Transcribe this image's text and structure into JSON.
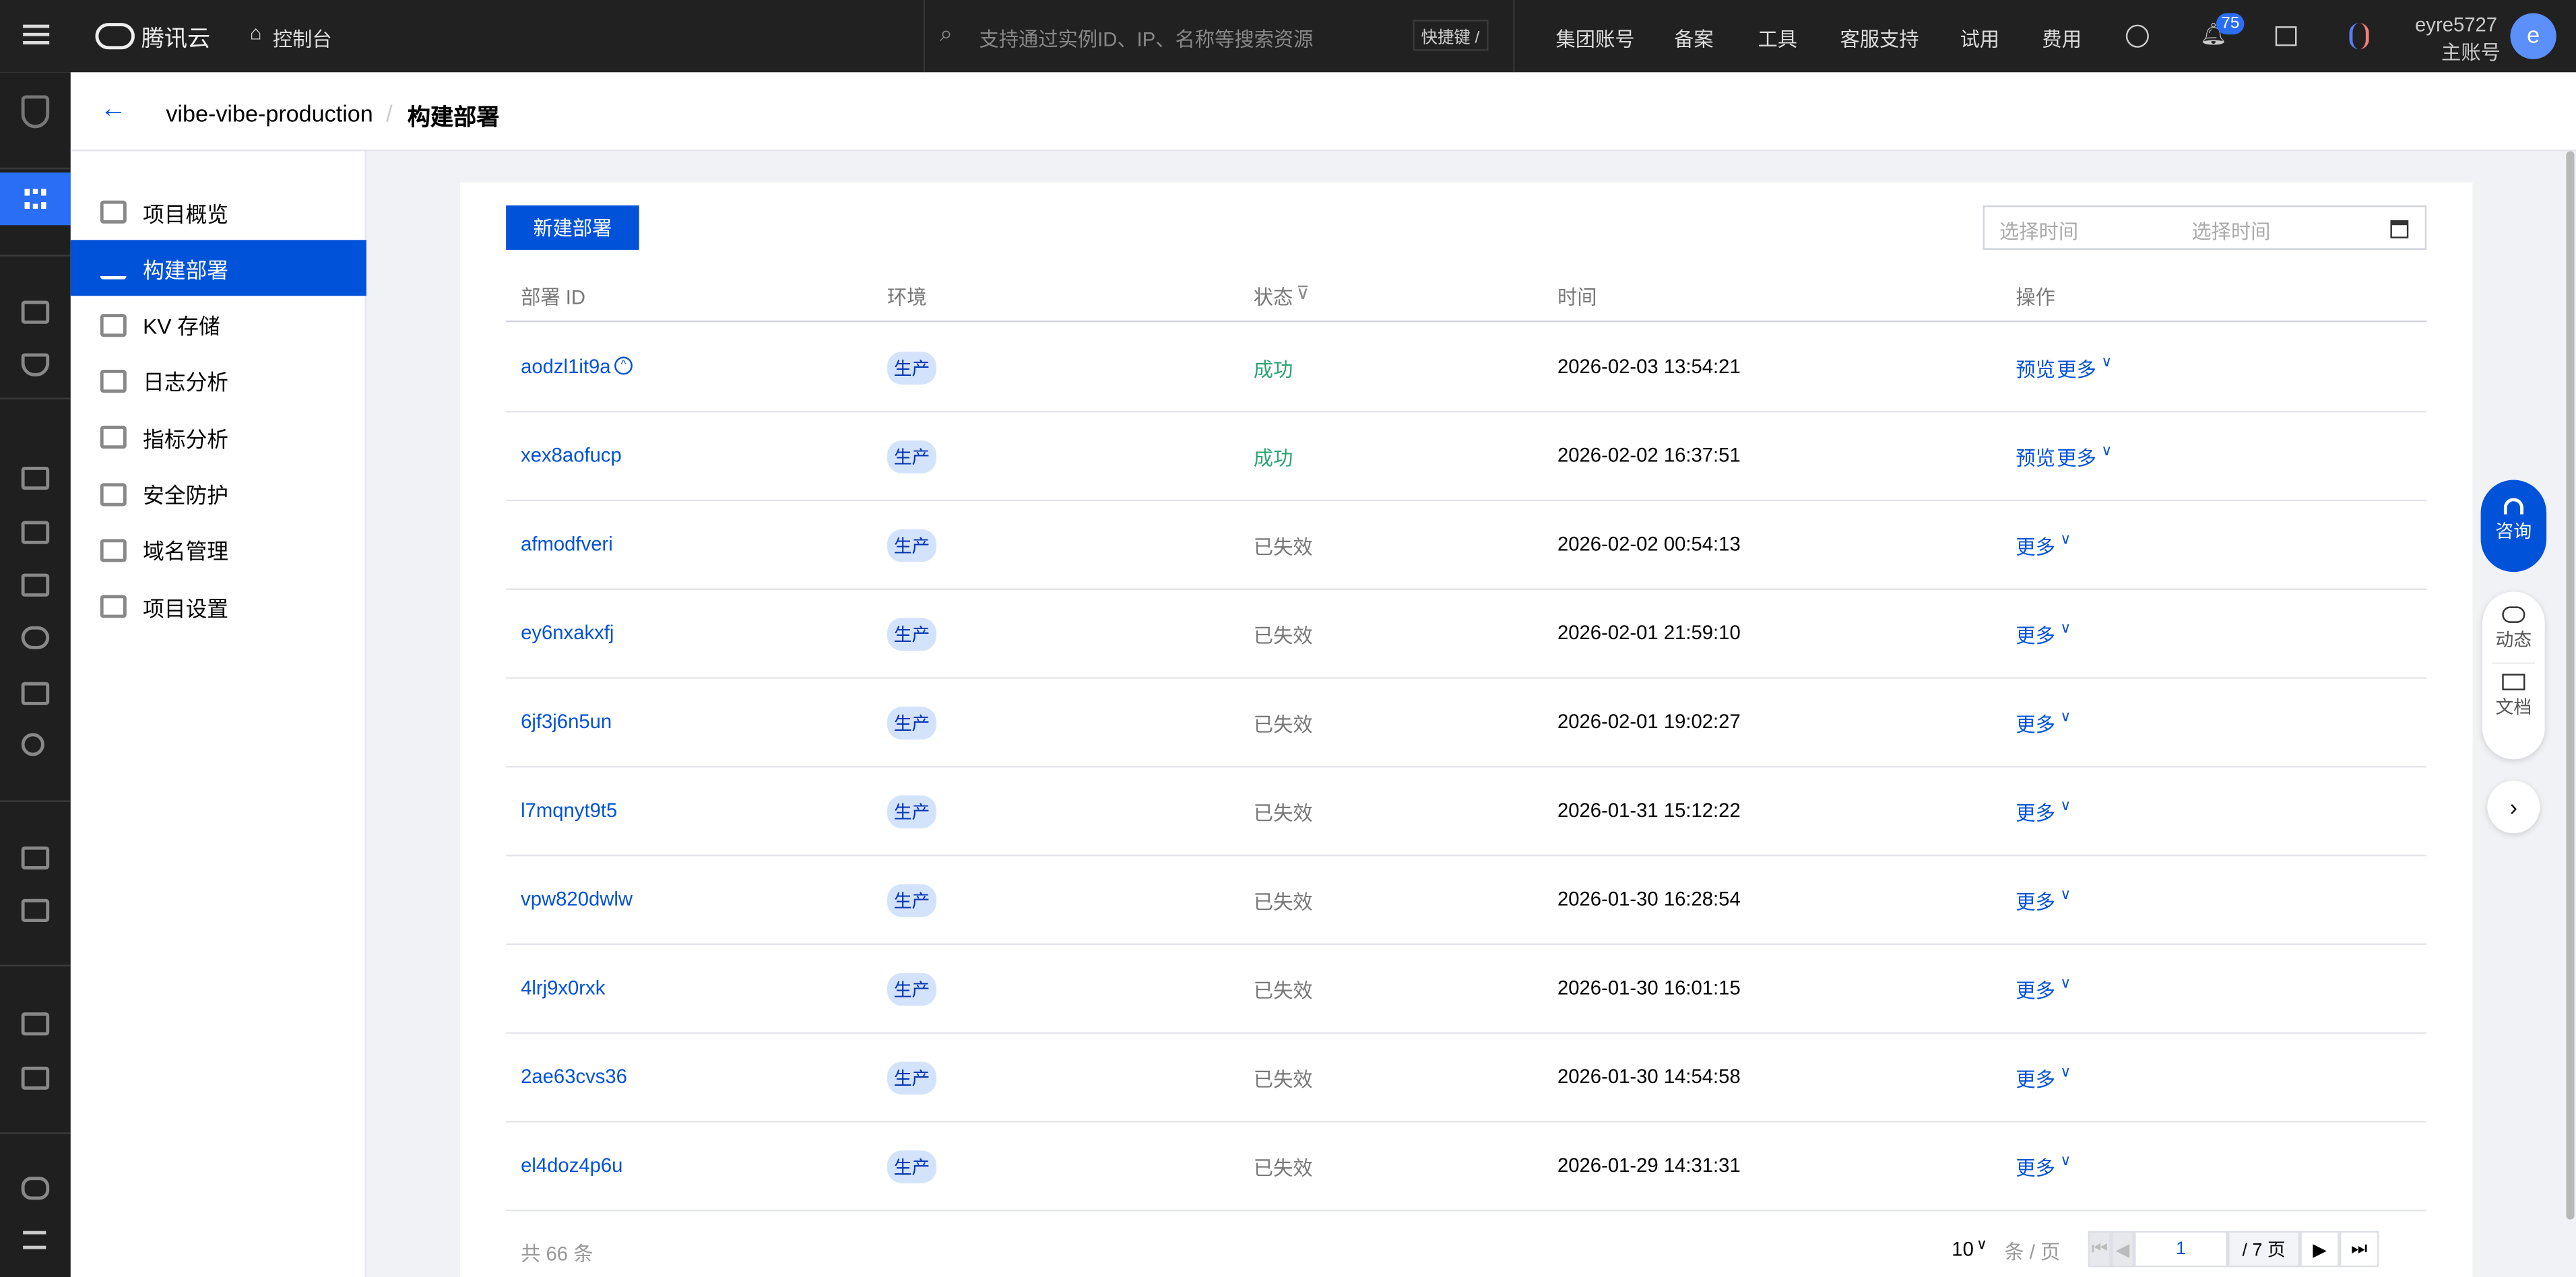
{
  "topbar": {
    "brand": "腾讯云",
    "console": "控制台",
    "search_placeholder": "支持通过实例ID、IP、名称等搜索资源",
    "shortcut": "快捷键 /",
    "nav": [
      "集团账号",
      "备案",
      "工具",
      "客服支持",
      "试用",
      "费用"
    ],
    "notification_count": "75",
    "username": "eyre5727",
    "account_type": "主账号",
    "avatar_letter": "e"
  },
  "breadcrumb": {
    "project": "vibe-vibe-production",
    "current": "构建部署"
  },
  "menu": [
    {
      "label": "项目概览",
      "icon": "dashboard-icon"
    },
    {
      "label": "构建部署",
      "icon": "upload-icon",
      "active": true
    },
    {
      "label": "KV 存储",
      "icon": "database-icon"
    },
    {
      "label": "日志分析",
      "icon": "log-icon"
    },
    {
      "label": "指标分析",
      "icon": "chart-icon"
    },
    {
      "label": "安全防护",
      "icon": "shield-icon"
    },
    {
      "label": "域名管理",
      "icon": "domain-icon"
    },
    {
      "label": "项目设置",
      "icon": "settings-icon"
    }
  ],
  "toolbar": {
    "new_label": "新建部署",
    "start_placeholder": "选择时间",
    "end_placeholder": "选择时间"
  },
  "table": {
    "headers": [
      "部署 ID",
      "环境",
      "状态",
      "时间",
      "操作"
    ],
    "rows": [
      {
        "id": "aodzl1it9a",
        "env": "生产",
        "status": "成功",
        "time": "2026-02-03 13:54:21",
        "preview": "预览",
        "more": "更多"
      },
      {
        "id": "xex8aofucp",
        "env": "生产",
        "status": "成功",
        "time": "2026-02-02 16:37:51",
        "preview": "预览",
        "more": "更多"
      },
      {
        "id": "afmodfveri",
        "env": "生产",
        "status": "已失效",
        "time": "2026-02-02 00:54:13",
        "more": "更多"
      },
      {
        "id": "ey6nxakxfj",
        "env": "生产",
        "status": "已失效",
        "time": "2026-02-01 21:59:10",
        "more": "更多"
      },
      {
        "id": "6jf3j6n5un",
        "env": "生产",
        "status": "已失效",
        "time": "2026-02-01 19:02:27",
        "more": "更多"
      },
      {
        "id": "l7mqnyt9t5",
        "env": "生产",
        "status": "已失效",
        "time": "2026-01-31 15:12:22",
        "more": "更多"
      },
      {
        "id": "vpw820dwlw",
        "env": "生产",
        "status": "已失效",
        "time": "2026-01-30 16:28:54",
        "more": "更多"
      },
      {
        "id": "4lrj9x0rxk",
        "env": "生产",
        "status": "已失效",
        "time": "2026-01-30 16:01:15",
        "more": "更多"
      },
      {
        "id": "2ae63cvs36",
        "env": "生产",
        "status": "已失效",
        "time": "2026-01-30 14:54:58",
        "more": "更多"
      },
      {
        "id": "el4doz4p6u",
        "env": "生产",
        "status": "已失效",
        "time": "2026-01-29 14:31:31",
        "more": "更多"
      }
    ]
  },
  "pagination": {
    "total": "共 66 条",
    "page_size": "10",
    "per_page": "条 / 页",
    "current": "1",
    "pages": "/ 7 页"
  },
  "float": {
    "consult": "咨询",
    "news": "动态",
    "docs": "文档"
  },
  "colors": {
    "primary": "#0052d9",
    "success": "#2ba471",
    "topbar": "#212121"
  }
}
